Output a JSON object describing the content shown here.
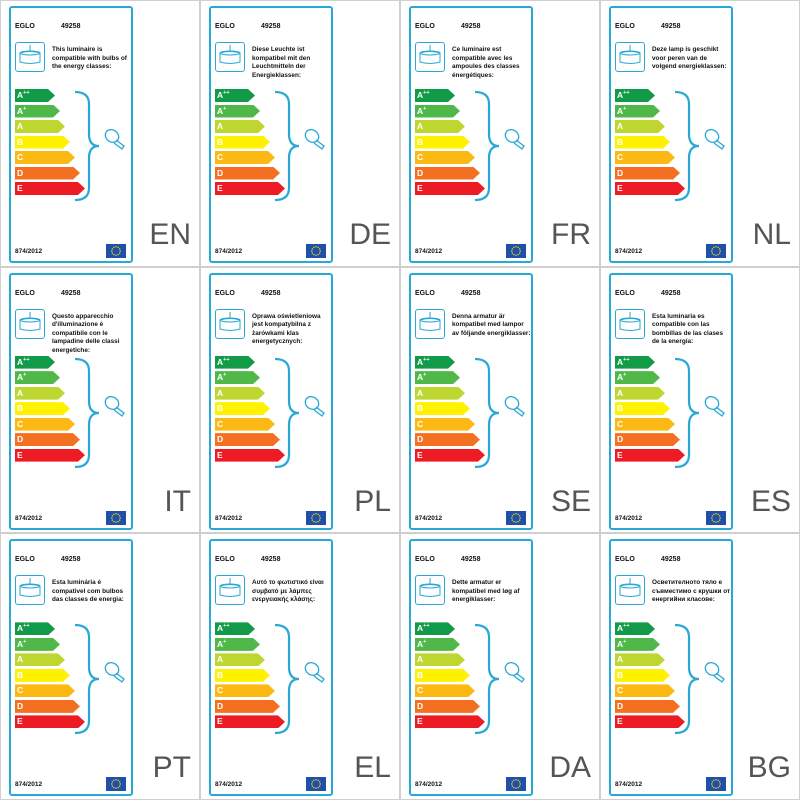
{
  "brand": "EGLO",
  "model": "49258",
  "regulation": "874/2012",
  "energy_classes": [
    {
      "letter": "A",
      "sup": "++",
      "color": "#119a47"
    },
    {
      "letter": "A",
      "sup": "+",
      "color": "#50b848"
    },
    {
      "letter": "A",
      "sup": "",
      "color": "#bed630"
    },
    {
      "letter": "B",
      "sup": "",
      "color": "#fff200"
    },
    {
      "letter": "C",
      "sup": "",
      "color": "#fdb913"
    },
    {
      "letter": "D",
      "sup": "",
      "color": "#f37021"
    },
    {
      "letter": "E",
      "sup": "",
      "color": "#ed1c24"
    }
  ],
  "accent_color": "#29a8d6",
  "eu_flag_color": "#1f4fa8",
  "labels": [
    {
      "lang": "EN",
      "text": "This luminaire is compatible with bulbs of the energy classes:"
    },
    {
      "lang": "DE",
      "text": "Diese Leuchte ist kompatibel mit den Leuchtmitteln der Energieklassen:"
    },
    {
      "lang": "FR",
      "text": "Ce luminaire est compatible avec les ampoules des classes énergétiques:"
    },
    {
      "lang": "NL",
      "text": "Deze lamp is geschikt voor peren van de volgend energieklassen:"
    },
    {
      "lang": "IT",
      "text": "Questo apparecchio d'illuminazione è compatibile con le lampadine delle classi energetiche:"
    },
    {
      "lang": "PL",
      "text": "Oprawa oświetleniowa jest kompatybilna z żarówkami klas energetycznych:"
    },
    {
      "lang": "SE",
      "text": "Denna armatur är kompatibel med lampor av följande energiklasser:"
    },
    {
      "lang": "ES",
      "text": "Esta luminaria es compatible con las bombillas de las clases de la energía:"
    },
    {
      "lang": "PT",
      "text": "Esta luminária é compativel com bulbos das classes de energia:"
    },
    {
      "lang": "EL",
      "text": "Αυτό το φωτιστικό είναι συμβατό με λάμπες ενεργειακής κλάσης:"
    },
    {
      "lang": "DA",
      "text": "Dette armatur er kompatibel med løg af energiklasser:"
    },
    {
      "lang": "BG",
      "text": "Осветителното тяло е съвместимо с крушки от енергийни класове:"
    }
  ]
}
